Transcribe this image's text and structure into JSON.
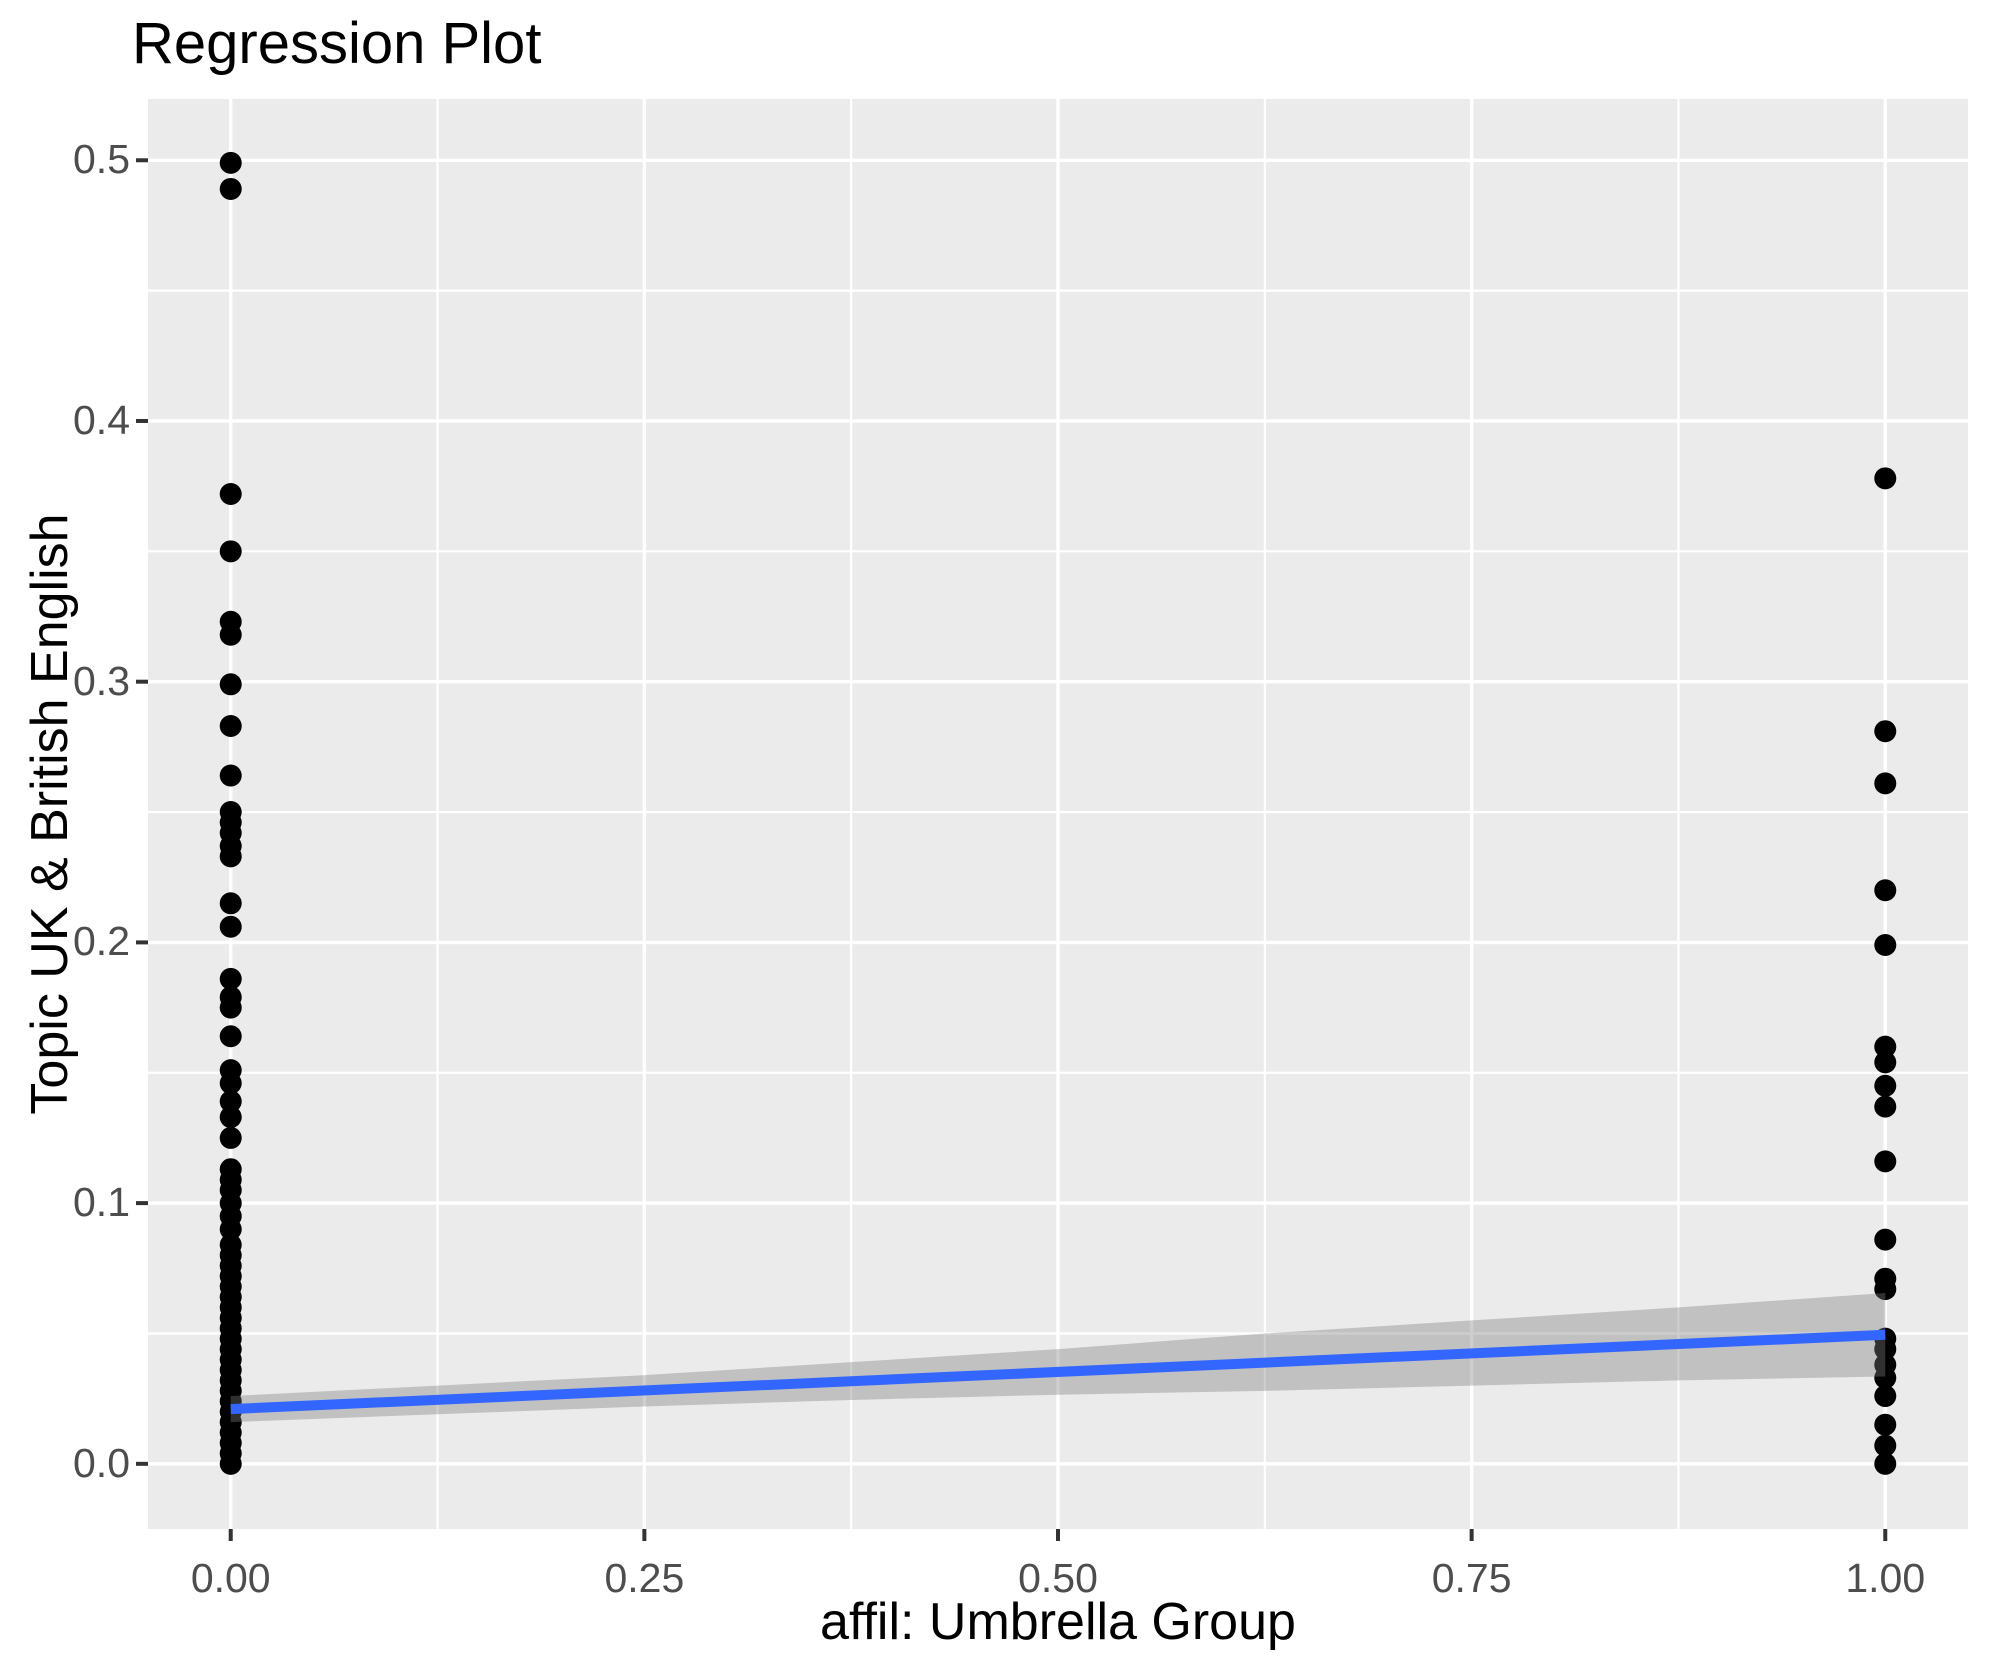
{
  "title": "Regression Plot",
  "colors": {
    "background": "#FFFFFF",
    "panel_background": "#EBEBEB",
    "gridline": "#FFFFFF",
    "point": "#000000",
    "regression_line": "#3366FF",
    "confidence_band": "rgba(125,125,125,0.38)",
    "tick_mark": "#333333",
    "tick_label": "#4D4D4D",
    "title_text": "#000000"
  },
  "chart_data": {
    "type": "scatter",
    "title": "Regression Plot",
    "xlabel": "affil: Umbrella Group",
    "ylabel": "Topic UK & British English",
    "xlim": [
      -0.05,
      1.05
    ],
    "ylim": [
      -0.025,
      0.5235
    ],
    "grid": "on",
    "legend": "none",
    "panel_bg": "#EBEBEB",
    "x_ticks": {
      "values": [
        0,
        0.25,
        0.5,
        0.75,
        1.0
      ],
      "labels": [
        "0.00",
        "0.25",
        "0.50",
        "0.75",
        "1.00"
      ]
    },
    "y_ticks": {
      "values": [
        0.0,
        0.1,
        0.2,
        0.3,
        0.4,
        0.5
      ],
      "labels": [
        "0.0",
        "0.1",
        "0.2",
        "0.3",
        "0.4",
        "0.5"
      ]
    },
    "x_minor": [
      0.125,
      0.375,
      0.625,
      0.875
    ],
    "y_minor": [
      0.05,
      0.15,
      0.25,
      0.35,
      0.45
    ],
    "series": [
      {
        "name": "affil = 0",
        "x": 0,
        "y": [
          0.499,
          0.489,
          0.372,
          0.35,
          0.323,
          0.318,
          0.299,
          0.283,
          0.264,
          0.25,
          0.246,
          0.242,
          0.237,
          0.233,
          0.215,
          0.206,
          0.186,
          0.179,
          0.175,
          0.164,
          0.151,
          0.146,
          0.139,
          0.133,
          0.125,
          0.113,
          0.109,
          0.105,
          0.1,
          0.095,
          0.09,
          0.084,
          0.08,
          0.076,
          0.072,
          0.068,
          0.064,
          0.06,
          0.056,
          0.052,
          0.048,
          0.044,
          0.04,
          0.036,
          0.032,
          0.028,
          0.024,
          0.02,
          0.016,
          0.012,
          0.008,
          0.004,
          0.0
        ]
      },
      {
        "name": "affil = 1",
        "x": 1,
        "y": [
          0.378,
          0.281,
          0.261,
          0.22,
          0.199,
          0.16,
          0.154,
          0.145,
          0.137,
          0.116,
          0.086,
          0.071,
          0.067,
          0.048,
          0.044,
          0.038,
          0.033,
          0.026,
          0.015,
          0.007,
          0.0
        ]
      }
    ],
    "regression": {
      "intercept": 0.021,
      "slope": 0.0285,
      "x_start": 0,
      "x_end": 1,
      "color": "#3366FF"
    },
    "confidence_band": {
      "x": [
        0,
        0.125,
        0.25,
        0.375,
        0.5,
        0.625,
        0.75,
        0.875,
        1.0
      ],
      "upper": [
        0.026,
        0.03,
        0.034,
        0.039,
        0.044,
        0.05,
        0.055,
        0.06,
        0.0655
      ],
      "lower": [
        0.016,
        0.019,
        0.022,
        0.0245,
        0.0265,
        0.028,
        0.03,
        0.032,
        0.0335
      ]
    },
    "point_radius_px": 11
  }
}
